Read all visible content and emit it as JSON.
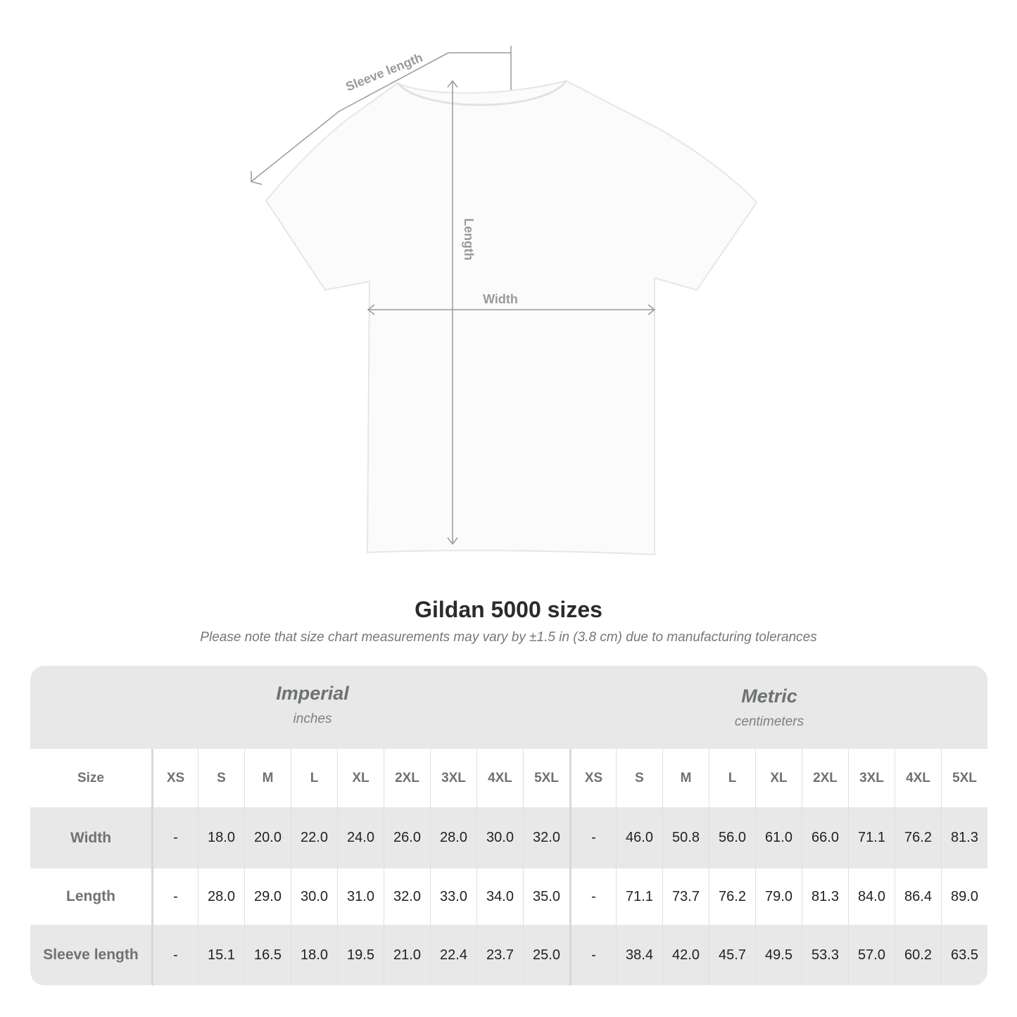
{
  "diagram": {
    "labels": {
      "sleeve": "Sleeve length",
      "length": "Length",
      "width": "Width"
    },
    "colors": {
      "measure_line": "#9a9a9a",
      "shirt": "#fbfbfb"
    }
  },
  "title": "Gildan 5000 sizes",
  "subtitle": "Please note that size chart measurements may vary by ±1.5 in (3.8 cm) due to manufacturing tolerances",
  "table": {
    "imperial": {
      "name": "Imperial",
      "unit": "inches"
    },
    "metric": {
      "name": "Metric",
      "unit": "centimeters"
    },
    "size_label": "Size",
    "sizes": [
      "XS",
      "S",
      "M",
      "L",
      "XL",
      "2XL",
      "3XL",
      "4XL",
      "5XL"
    ],
    "rows": [
      {
        "label": "Width",
        "imperial": [
          "-",
          "18.0",
          "20.0",
          "22.0",
          "24.0",
          "26.0",
          "28.0",
          "30.0",
          "32.0"
        ],
        "metric": [
          "-",
          "46.0",
          "50.8",
          "56.0",
          "61.0",
          "66.0",
          "71.1",
          "76.2",
          "81.3"
        ]
      },
      {
        "label": "Length",
        "imperial": [
          "-",
          "28.0",
          "29.0",
          "30.0",
          "31.0",
          "32.0",
          "33.0",
          "34.0",
          "35.0"
        ],
        "metric": [
          "-",
          "71.1",
          "73.7",
          "76.2",
          "79.0",
          "81.3",
          "84.0",
          "86.4",
          "89.0"
        ]
      },
      {
        "label": "Sleeve length",
        "imperial": [
          "-",
          "15.1",
          "16.5",
          "18.0",
          "19.5",
          "21.0",
          "22.4",
          "23.7",
          "25.0"
        ],
        "metric": [
          "-",
          "38.4",
          "42.0",
          "45.7",
          "49.5",
          "53.3",
          "57.0",
          "60.2",
          "63.5"
        ]
      }
    ]
  }
}
